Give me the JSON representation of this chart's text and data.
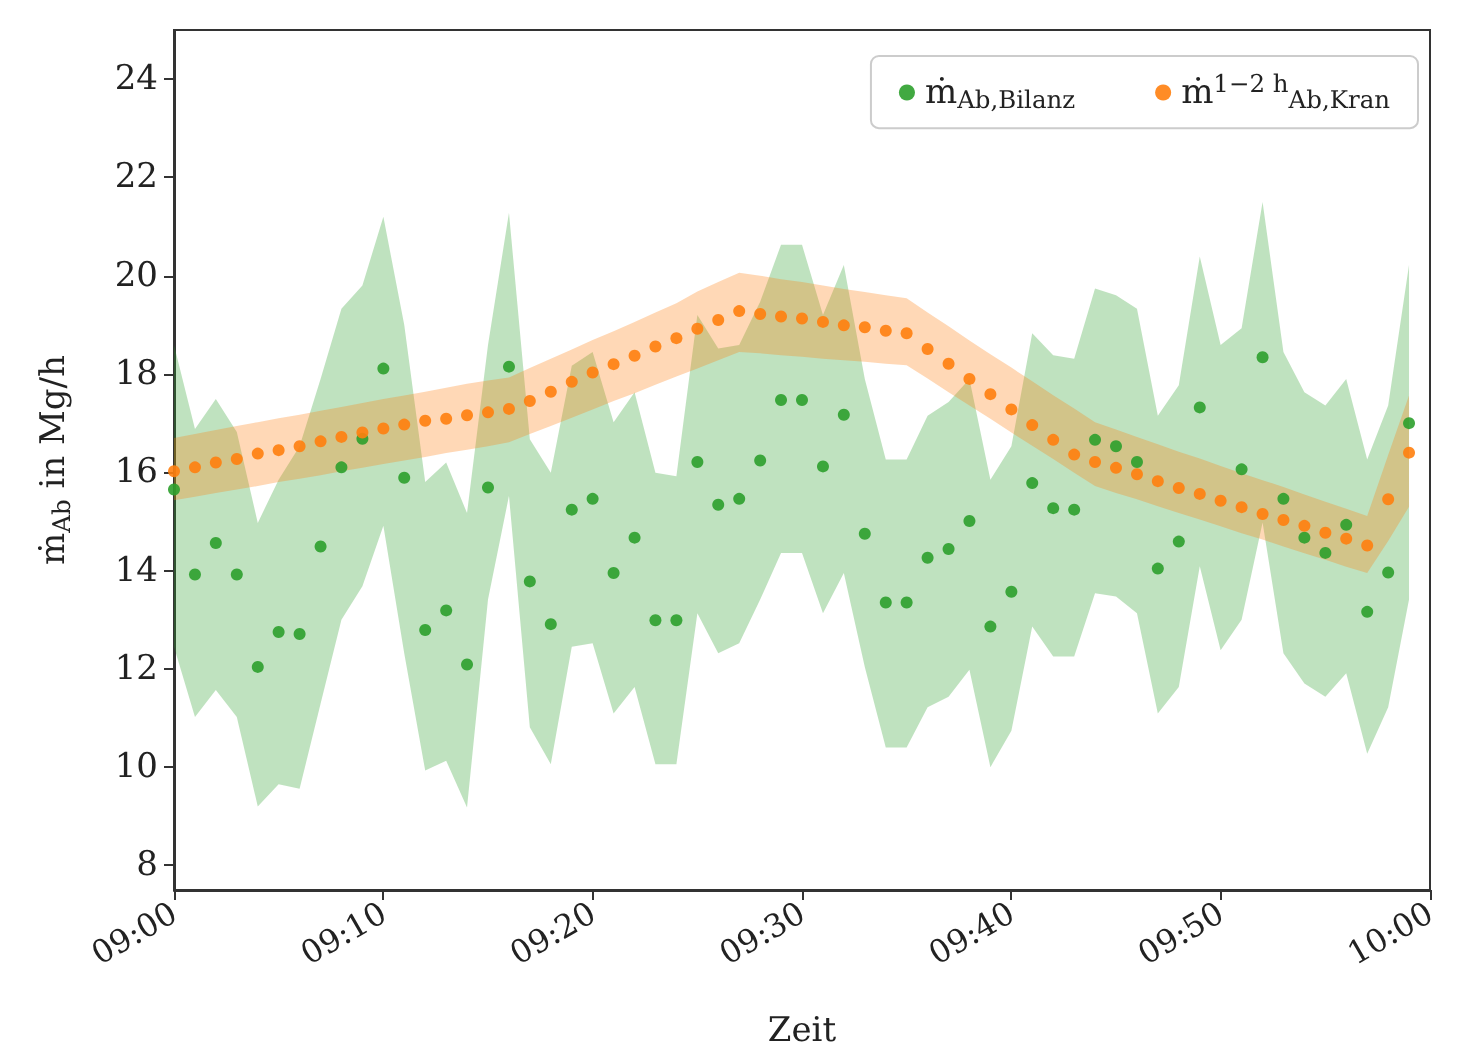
{
  "chart_data": {
    "type": "scatter",
    "xlabel": "Zeit",
    "ylabel": "ṁ$_{Ab}$ in Mg/h",
    "x": [
      9,
      9.0167,
      9.0333,
      9.05,
      9.0667,
      9.0833,
      9.1,
      9.1167,
      9.1333,
      9.15,
      9.1667,
      9.1833,
      9.2,
      9.2167,
      9.2333,
      9.25,
      9.2667,
      9.2833,
      9.3,
      9.3167,
      9.3333,
      9.35,
      9.3667,
      9.3833,
      9.4,
      9.4167,
      9.4333,
      9.45,
      9.4667,
      9.4833,
      9.5,
      9.5167,
      9.5333,
      9.55,
      9.5667,
      9.5833,
      9.6,
      9.6167,
      9.6333,
      9.65,
      9.6667,
      9.6833,
      9.7,
      9.7167,
      9.7333,
      9.75,
      9.7667,
      9.7833,
      9.8,
      9.8167,
      9.8333,
      9.85,
      9.8667,
      9.8833,
      9.9,
      9.9167,
      9.9333,
      9.95,
      9.9667,
      9.9833
    ],
    "series": [
      {
        "name": "ṁ$_{Ab,Bilanz}$",
        "color": "#2ca02c",
        "values": [
          15.65,
          13.92,
          14.56,
          13.92,
          12.04,
          12.75,
          12.71,
          14.49,
          16.1,
          16.68,
          18.11,
          15.89,
          12.79,
          13.19,
          12.09,
          15.69,
          18.15,
          13.78,
          12.91,
          15.24,
          15.46,
          13.95,
          14.67,
          12.99,
          12.99,
          16.21,
          15.34,
          15.46,
          16.24,
          17.47,
          17.47,
          16.12,
          17.17,
          14.75,
          13.35,
          13.35,
          14.26,
          14.44,
          15.01,
          12.86,
          13.57,
          15.78,
          15.27,
          15.24,
          16.66,
          16.53,
          16.21,
          14.04,
          14.59,
          17.32,
          null,
          16.06,
          18.34,
          15.46,
          14.67,
          14.36,
          14.93,
          13.16,
          13.96,
          17.0
        ],
        "upper": [
          18.59,
          16.88,
          17.49,
          16.82,
          14.97,
          15.85,
          16.53,
          17.9,
          19.33,
          19.8,
          21.2,
          19.0,
          15.8,
          16.2,
          15.17,
          18.59,
          21.28,
          16.67,
          15.99,
          18.17,
          18.45,
          17.02,
          17.63,
          15.99,
          15.92,
          19.2,
          18.52,
          18.59,
          19.47,
          20.63,
          20.63,
          19.2,
          20.22,
          17.9,
          16.26,
          16.26,
          17.15,
          17.43,
          17.9,
          15.85,
          16.53,
          18.83,
          18.38,
          18.31,
          19.74,
          19.6,
          19.33,
          17.15,
          17.77,
          20.39,
          18.59,
          18.93,
          21.5,
          18.45,
          17.63,
          17.36,
          17.9,
          16.26,
          17.36,
          20.22
        ],
        "lower": [
          12.45,
          11.02,
          11.57,
          11.02,
          9.2,
          9.65,
          9.56,
          11.29,
          13.0,
          13.68,
          14.91,
          12.32,
          9.93,
          10.13,
          9.18,
          13.41,
          15.52,
          10.81,
          10.06,
          12.45,
          12.52,
          11.09,
          11.63,
          10.06,
          10.06,
          13.13,
          12.32,
          12.52,
          13.41,
          14.36,
          14.36,
          13.13,
          13.95,
          12.04,
          10.4,
          10.4,
          11.22,
          11.43,
          11.98,
          10.0,
          10.74,
          12.86,
          12.25,
          12.25,
          13.54,
          13.47,
          13.13,
          11.09,
          11.63,
          14.09,
          12.38,
          13.0,
          14.98,
          12.32,
          11.7,
          11.43,
          11.91,
          10.27,
          11.22,
          13.41
        ]
      },
      {
        "name": "ṁ$^{1−2 h}$$_{Ab,Kran}$",
        "color": "#ff7f0e",
        "values": [
          16.02,
          16.1,
          16.2,
          16.27,
          16.38,
          16.45,
          16.53,
          16.63,
          16.72,
          16.81,
          16.89,
          16.97,
          17.05,
          17.09,
          17.16,
          17.22,
          17.29,
          17.45,
          17.64,
          17.84,
          18.03,
          18.2,
          18.37,
          18.56,
          18.73,
          18.92,
          19.1,
          19.28,
          19.22,
          19.17,
          19.13,
          19.06,
          18.99,
          18.95,
          18.88,
          18.83,
          18.51,
          18.21,
          17.9,
          17.59,
          17.28,
          16.96,
          16.66,
          16.36,
          16.21,
          16.09,
          15.96,
          15.82,
          15.68,
          15.56,
          15.42,
          15.29,
          15.15,
          15.03,
          14.91,
          14.77,
          14.65,
          14.51,
          15.45,
          16.4
        ],
        "upper": [
          16.7,
          16.78,
          16.86,
          16.94,
          17.02,
          17.1,
          17.17,
          17.25,
          17.33,
          17.41,
          17.49,
          17.56,
          17.64,
          17.72,
          17.8,
          17.87,
          17.93,
          18.12,
          18.31,
          18.5,
          18.69,
          18.87,
          19.06,
          19.25,
          19.44,
          19.68,
          19.87,
          20.06,
          20.0,
          19.93,
          19.87,
          19.8,
          19.73,
          19.67,
          19.6,
          19.54,
          19.25,
          18.97,
          18.68,
          18.4,
          18.13,
          17.85,
          17.57,
          17.3,
          17.02,
          16.87,
          16.72,
          16.57,
          16.42,
          16.28,
          16.13,
          15.98,
          15.84,
          15.7,
          15.55,
          15.4,
          15.26,
          15.11,
          16.35,
          17.56
        ],
        "lower": [
          15.43,
          15.5,
          15.58,
          15.65,
          15.72,
          15.8,
          15.87,
          15.94,
          16.02,
          16.09,
          16.17,
          16.24,
          16.31,
          16.39,
          16.46,
          16.53,
          16.61,
          16.78,
          16.94,
          17.11,
          17.28,
          17.45,
          17.61,
          17.78,
          17.95,
          18.11,
          18.28,
          18.45,
          18.42,
          18.38,
          18.35,
          18.31,
          18.28,
          18.25,
          18.21,
          18.18,
          17.91,
          17.63,
          17.36,
          17.09,
          16.81,
          16.54,
          16.27,
          15.99,
          15.72,
          15.58,
          15.45,
          15.31,
          15.17,
          15.04,
          14.9,
          14.76,
          14.63,
          14.49,
          14.35,
          14.22,
          14.08,
          13.95,
          14.6,
          15.3
        ]
      }
    ],
    "xlim": [
      9,
      10
    ],
    "xticks": [
      {
        "value": 9,
        "label": "09:00"
      },
      {
        "value": 9.1667,
        "label": "09:10"
      },
      {
        "value": 9.3333,
        "label": "09:20"
      },
      {
        "value": 9.5,
        "label": "09:30"
      },
      {
        "value": 9.6667,
        "label": "09:40"
      },
      {
        "value": 9.8333,
        "label": "09:50"
      },
      {
        "value": 10,
        "label": "10:00"
      }
    ],
    "ylim": [
      7.5,
      25
    ],
    "yticks": [
      8,
      10,
      12,
      14,
      16,
      18,
      20,
      22,
      24
    ],
    "grid": false,
    "legend": "top right",
    "marker": "circle"
  }
}
